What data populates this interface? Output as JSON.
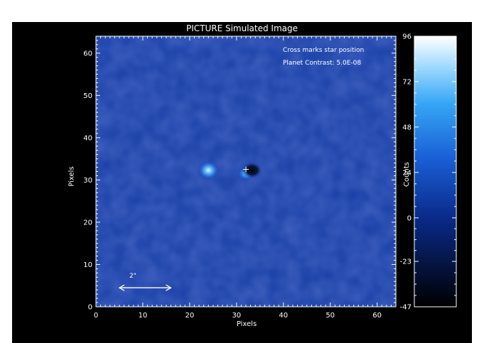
{
  "figure": {
    "title": "PICTURE Simulated Image",
    "annotation_marker": "Cross marks star position",
    "annotation_contrast": "Planet Contrast: 5.0E-08",
    "xlabel": "Pixels",
    "ylabel": "Pixels",
    "scale_bar_label": "2\"",
    "colorbar_label": "Counts",
    "background_color": "#000000",
    "image_base_color": "#173ea6",
    "text_color": "#ffffff"
  },
  "chart_data": {
    "type": "heatmap",
    "title": "PICTURE Simulated Image",
    "xlabel": "Pixels",
    "ylabel": "Pixels",
    "xlim": [
      0,
      64
    ],
    "ylim": [
      0,
      64
    ],
    "x_ticks": [
      "0",
      "10",
      "20",
      "30",
      "40",
      "50",
      "60"
    ],
    "y_ticks": [
      "0",
      "10",
      "20",
      "30",
      "40",
      "50",
      "60"
    ],
    "colorbar": {
      "label": "Counts",
      "range": [
        -47,
        96
      ],
      "ticks": [
        "96",
        "72",
        "48",
        "24",
        "0",
        "-23",
        "-47"
      ]
    },
    "star_position": [
      32,
      32.5
    ],
    "features": [
      {
        "type": "planet",
        "x": 24,
        "y": 32.3,
        "brightness": "peak"
      },
      {
        "type": "speckle",
        "x": 32,
        "y": 31.5,
        "brightness": "moderate"
      },
      {
        "type": "dark_hole",
        "x": 33.3,
        "y": 32.3
      }
    ],
    "scale_bar": {
      "label": "2\"",
      "x_start": 5,
      "x_end": 16,
      "y": 4.5
    }
  }
}
